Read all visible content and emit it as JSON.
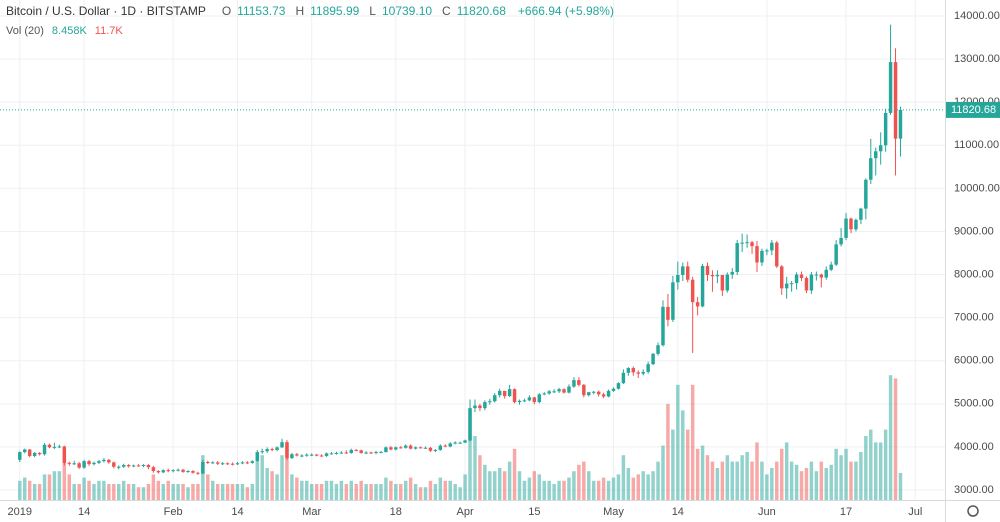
{
  "chart_data": {
    "type": "candlestick",
    "title": "Bitcoin / U.S. Dollar · 1D · BITSTAMP",
    "ohlc_legend": [
      {
        "key": "O",
        "value": "11153.73"
      },
      {
        "key": "H",
        "value": "11895.99"
      },
      {
        "key": "L",
        "value": "10739.10"
      },
      {
        "key": "C",
        "value": "11820.68"
      }
    ],
    "change": "+666.94 (+5.98%)",
    "volume_title": "Vol (20)",
    "volume_legend": [
      "8.458K",
      "11.7K"
    ],
    "up_color": "#26a69a",
    "down_color": "#ef5350",
    "last_price": {
      "value": 11820.68,
      "label": "11820.68"
    },
    "xlim": [
      "2018-12-28",
      "2019-07-07"
    ],
    "xticks": [
      {
        "value": "2019-01-01",
        "label": "2019"
      },
      {
        "value": "2019-01-14",
        "label": "14"
      },
      {
        "value": "2019-02-01",
        "label": "Feb"
      },
      {
        "value": "2019-02-14",
        "label": "14"
      },
      {
        "value": "2019-03-01",
        "label": "Mar"
      },
      {
        "value": "2019-03-18",
        "label": "18"
      },
      {
        "value": "2019-04-01",
        "label": "Apr"
      },
      {
        "value": "2019-04-15",
        "label": "15"
      },
      {
        "value": "2019-05-01",
        "label": "May"
      },
      {
        "value": "2019-05-14",
        "label": "14"
      },
      {
        "value": "2019-06-01",
        "label": "Jun"
      },
      {
        "value": "2019-06-17",
        "label": "17"
      },
      {
        "value": "2019-07-01",
        "label": "Jul"
      }
    ],
    "ylim": [
      3000,
      14000
    ],
    "yticks": [
      {
        "value": 3000,
        "label": "3000.00"
      },
      {
        "value": 4000,
        "label": "4000.00"
      },
      {
        "value": 5000,
        "label": "5000.00"
      },
      {
        "value": 6000,
        "label": "6000.00"
      },
      {
        "value": 7000,
        "label": "7000.00"
      },
      {
        "value": 8000,
        "label": "8000.00"
      },
      {
        "value": 9000,
        "label": "9000.00"
      },
      {
        "value": 10000,
        "label": "10000.00"
      },
      {
        "value": 11000,
        "label": "11000.00"
      },
      {
        "value": 12000,
        "label": "12000.00"
      },
      {
        "value": 13000,
        "label": "13000.00"
      },
      {
        "value": 14000,
        "label": "14000.00"
      }
    ],
    "volume_ylim": [
      0,
      150
    ],
    "start": "2019-01-01",
    "open": [
      3700,
      3880,
      3940,
      3790,
      3860,
      3830,
      4050,
      3990,
      4000,
      4010,
      3630,
      3620,
      3620,
      3520,
      3670,
      3600,
      3630,
      3670,
      3700,
      3640,
      3540,
      3540,
      3580,
      3550,
      3570,
      3560,
      3580,
      3530,
      3440,
      3410,
      3460,
      3440,
      3460,
      3470,
      3420,
      3440,
      3400,
      3380,
      3650,
      3640,
      3640,
      3610,
      3620,
      3610,
      3600,
      3620,
      3640,
      3630,
      3670,
      3880,
      3900,
      3950,
      3930,
      3990,
      4110,
      3740,
      3830,
      3800,
      3800,
      3820,
      3820,
      3800,
      3790,
      3850,
      3850,
      3860,
      3870,
      3860,
      3930,
      3920,
      3860,
      3870,
      3860,
      3880,
      3880,
      3990,
      3940,
      3990,
      3980,
      4030,
      3960,
      3990,
      3980,
      3980,
      3910,
      3930,
      4030,
      4010,
      4080,
      4100,
      4100,
      4150,
      4900,
      4960,
      4900,
      5040,
      5060,
      5200,
      5300,
      5180,
      5340,
      5040,
      5070,
      5080,
      5150,
      5040,
      5220,
      5240,
      5290,
      5290,
      5340,
      5260,
      5400,
      5550,
      5440,
      5200,
      5270,
      5280,
      5220,
      5170,
      5300,
      5350,
      5480,
      5720,
      5830,
      5730,
      5700,
      5740,
      5920,
      6160,
      6360,
      7250,
      6950,
      7820,
      7990,
      8190,
      7880,
      7360,
      7260,
      8200,
      7990,
      7960,
      7990,
      7630,
      8000,
      8060,
      8730,
      8740,
      8750,
      8660,
      8280,
      8550,
      8560,
      8740,
      8190,
      7680,
      7790,
      7800,
      8000,
      7920,
      7630,
      8000,
      8000,
      7930,
      8110,
      8230,
      8700,
      8850,
      9300,
      9050,
      9270,
      9530,
      10200,
      10700,
      10860,
      11000,
      11750,
      12930,
      11153.73
    ],
    "high": [
      3900,
      3960,
      3950,
      3880,
      3880,
      4090,
      4080,
      4100,
      4050,
      4030,
      3660,
      3680,
      3650,
      3700,
      3700,
      3660,
      3700,
      3740,
      3720,
      3660,
      3570,
      3610,
      3600,
      3590,
      3600,
      3600,
      3600,
      3560,
      3460,
      3480,
      3500,
      3480,
      3500,
      3490,
      3460,
      3460,
      3420,
      3700,
      3680,
      3670,
      3670,
      3650,
      3640,
      3640,
      3650,
      3670,
      3670,
      3690,
      3930,
      3960,
      3990,
      3980,
      4010,
      4190,
      4160,
      3860,
      3860,
      3830,
      3850,
      3850,
      3840,
      3830,
      3870,
      3880,
      3890,
      3900,
      3920,
      3960,
      3950,
      3940,
      3900,
      3890,
      3910,
      3910,
      4010,
      4020,
      4010,
      4020,
      4060,
      4060,
      4010,
      4010,
      4010,
      4000,
      3950,
      4060,
      4060,
      4110,
      4130,
      4120,
      4170,
      5100,
      5100,
      5000,
      5080,
      5120,
      5250,
      5350,
      5300,
      5440,
      5360,
      5100,
      5120,
      5200,
      5160,
      5250,
      5270,
      5320,
      5340,
      5370,
      5360,
      5450,
      5620,
      5620,
      5460,
      5280,
      5300,
      5310,
      5260,
      5330,
      5380,
      5500,
      5800,
      5850,
      5870,
      5780,
      5800,
      5980,
      6180,
      6420,
      7400,
      7550,
      7970,
      8300,
      8280,
      8300,
      7950,
      7480,
      8250,
      8280,
      8100,
      8100,
      7990,
      8050,
      8150,
      8800,
      8950,
      8930,
      8780,
      8780,
      8600,
      8600,
      8800,
      8780,
      8220,
      7950,
      7850,
      8050,
      8070,
      7960,
      8060,
      8070,
      8020,
      8190,
      8300,
      8800,
      9080,
      9430,
      9320,
      9300,
      9550,
      10230,
      11150,
      10950,
      11300,
      11850,
      13800,
      13250,
      11895.99
    ],
    "low": [
      3650,
      3850,
      3760,
      3760,
      3800,
      3800,
      3970,
      3950,
      3970,
      3570,
      3560,
      3580,
      3490,
      3490,
      3560,
      3570,
      3600,
      3640,
      3610,
      3500,
      3480,
      3510,
      3520,
      3530,
      3540,
      3530,
      3480,
      3400,
      3380,
      3390,
      3410,
      3410,
      3430,
      3400,
      3400,
      3380,
      3350,
      3370,
      3600,
      3610,
      3580,
      3580,
      3580,
      3570,
      3580,
      3600,
      3600,
      3610,
      3650,
      3840,
      3860,
      3900,
      3900,
      3970,
      3690,
      3720,
      3780,
      3760,
      3770,
      3790,
      3780,
      3770,
      3770,
      3820,
      3820,
      3840,
      3840,
      3840,
      3900,
      3840,
      3830,
      3840,
      3830,
      3860,
      3870,
      3920,
      3920,
      3960,
      3960,
      3940,
      3940,
      3960,
      3960,
      3880,
      3880,
      3910,
      3990,
      3990,
      4060,
      4070,
      4090,
      4130,
      4810,
      4830,
      4850,
      4980,
      5030,
      5150,
      5120,
      5160,
      5010,
      4980,
      5040,
      5060,
      4990,
      5010,
      5200,
      5210,
      5250,
      5250,
      5240,
      5240,
      5370,
      5400,
      5150,
      5170,
      5220,
      5170,
      5130,
      5150,
      5280,
      5330,
      5460,
      5650,
      5650,
      5600,
      5660,
      5700,
      5900,
      6120,
      6330,
      6800,
      6900,
      7650,
      7850,
      7820,
      6180,
      7050,
      7240,
      7850,
      7600,
      7800,
      7500,
      7580,
      7900,
      7990,
      8520,
      8620,
      8480,
      8060,
      8200,
      8450,
      8450,
      8150,
      7530,
      7440,
      7600,
      7650,
      7850,
      7570,
      7550,
      7860,
      7700,
      7880,
      8080,
      8200,
      8650,
      8800,
      8960,
      9000,
      9170,
      9280,
      10100,
      10300,
      10550,
      10850,
      11700,
      10300,
      10739.1
    ],
    "close": [
      3880,
      3940,
      3790,
      3860,
      3830,
      4050,
      3990,
      4000,
      4010,
      3630,
      3620,
      3620,
      3520,
      3670,
      3600,
      3630,
      3670,
      3700,
      3640,
      3540,
      3540,
      3580,
      3550,
      3570,
      3560,
      3580,
      3530,
      3440,
      3410,
      3460,
      3440,
      3460,
      3470,
      3420,
      3440,
      3400,
      3380,
      3650,
      3640,
      3640,
      3610,
      3620,
      3610,
      3600,
      3620,
      3640,
      3630,
      3670,
      3880,
      3900,
      3950,
      3930,
      3990,
      4110,
      3740,
      3830,
      3800,
      3800,
      3820,
      3820,
      3800,
      3790,
      3850,
      3850,
      3860,
      3870,
      3860,
      3930,
      3920,
      3860,
      3870,
      3860,
      3880,
      3880,
      3990,
      3940,
      3990,
      3980,
      4030,
      3960,
      3990,
      3980,
      3980,
      3910,
      3930,
      4030,
      4010,
      4080,
      4100,
      4100,
      4150,
      4900,
      4960,
      4900,
      5040,
      5060,
      5200,
      5300,
      5180,
      5340,
      5040,
      5070,
      5080,
      5150,
      5040,
      5220,
      5240,
      5290,
      5290,
      5340,
      5260,
      5400,
      5550,
      5440,
      5200,
      5270,
      5280,
      5220,
      5170,
      5300,
      5350,
      5480,
      5720,
      5830,
      5730,
      5700,
      5740,
      5920,
      6160,
      6360,
      7250,
      6950,
      7820,
      7990,
      8190,
      7880,
      7360,
      7260,
      8200,
      7990,
      7960,
      7990,
      7630,
      8000,
      8060,
      8730,
      8740,
      8750,
      8660,
      8280,
      8550,
      8560,
      8740,
      8190,
      7680,
      7790,
      7800,
      8000,
      7920,
      7630,
      8000,
      8000,
      7930,
      8110,
      8230,
      8700,
      8850,
      9300,
      9050,
      9270,
      9530,
      10200,
      10700,
      10860,
      11000,
      11750,
      12930,
      11153.73,
      11820.68
    ],
    "volume": [
      6,
      7,
      6,
      5,
      5,
      8,
      8,
      9,
      9,
      14,
      8,
      5,
      5,
      7,
      6,
      5,
      6,
      6,
      5,
      5,
      5,
      6,
      5,
      5,
      4,
      4,
      5,
      8,
      6,
      5,
      6,
      5,
      5,
      5,
      4,
      5,
      5,
      14,
      8,
      6,
      5,
      5,
      5,
      5,
      5,
      5,
      4,
      5,
      12,
      14,
      10,
      9,
      8,
      14,
      18,
      8,
      7,
      6,
      6,
      5,
      5,
      5,
      6,
      6,
      5,
      6,
      5,
      6,
      5,
      6,
      5,
      5,
      5,
      5,
      7,
      6,
      5,
      5,
      6,
      7,
      5,
      4,
      4,
      6,
      5,
      7,
      6,
      6,
      5,
      4,
      8,
      28,
      20,
      14,
      11,
      9,
      9,
      10,
      9,
      12,
      16,
      9,
      6,
      7,
      9,
      8,
      6,
      6,
      5,
      6,
      6,
      7,
      9,
      11,
      12,
      9,
      6,
      6,
      7,
      6,
      7,
      8,
      14,
      10,
      7,
      8,
      9,
      8,
      9,
      12,
      17,
      30,
      22,
      36,
      28,
      22,
      36,
      16,
      17,
      14,
      12,
      10,
      12,
      14,
      12,
      12,
      14,
      15,
      12,
      18,
      12,
      8,
      10,
      12,
      16,
      18,
      12,
      11,
      9,
      10,
      12,
      9,
      12,
      10,
      11,
      16,
      14,
      16,
      12,
      12,
      15,
      20,
      22,
      18,
      18,
      22,
      39,
      38,
      8.458
    ]
  }
}
